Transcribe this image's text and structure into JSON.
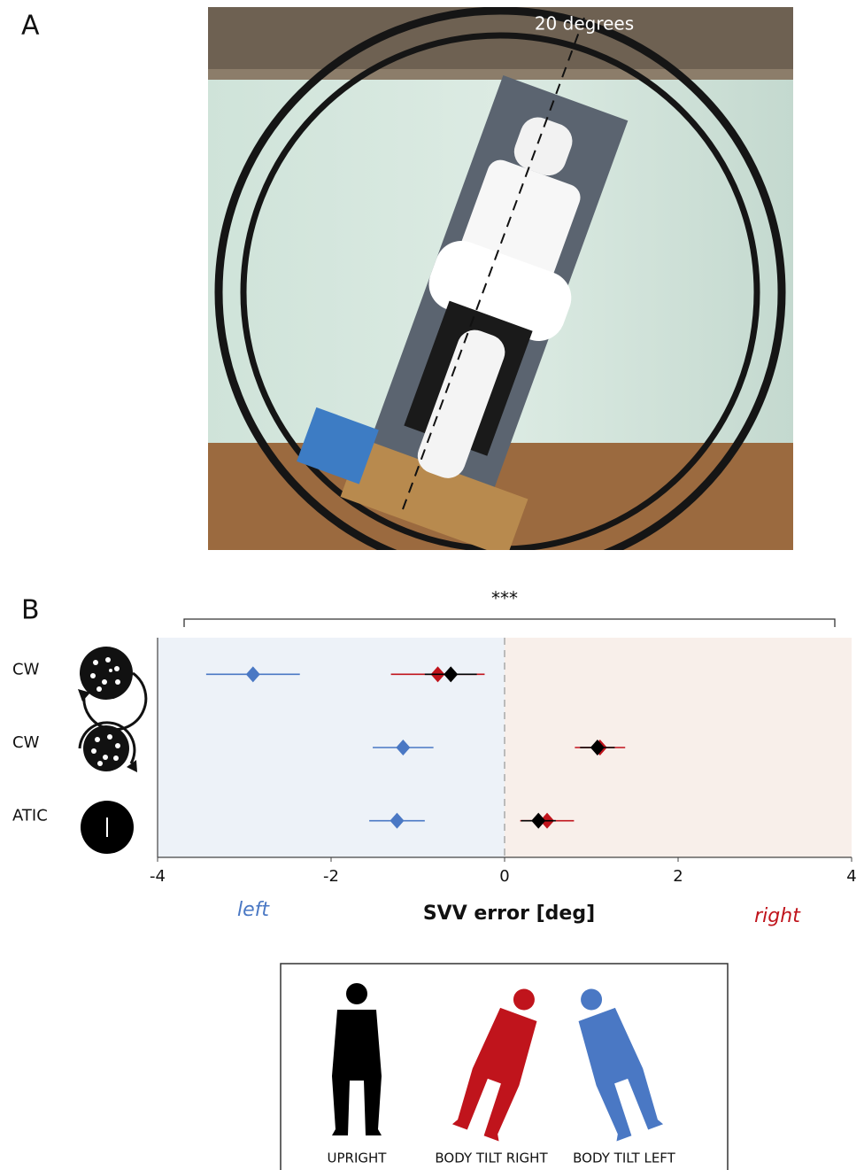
{
  "figure": {
    "panel_a_label": "A",
    "panel_b_label": "B",
    "photo_annotation": "20 degrees"
  },
  "chart_data": {
    "type": "errorbar",
    "categories": [
      "CW",
      "CW",
      "ATIC"
    ],
    "series": [
      {
        "name": "UPRIGHT",
        "color": "#000000",
        "values": [
          -0.62,
          1.07,
          0.39
        ],
        "errors": [
          0.3,
          0.2,
          0.2
        ]
      },
      {
        "name": "BODY TILT RIGHT",
        "color": "#c0141c",
        "values": [
          -0.77,
          1.1,
          0.49
        ],
        "errors": [
          0.54,
          0.29,
          0.31
        ]
      },
      {
        "name": "BODY TILT LEFT",
        "color": "#4a78c4",
        "values": [
          -2.9,
          -1.17,
          -1.24
        ],
        "errors": [
          0.54,
          0.35,
          0.32
        ]
      }
    ],
    "xlim": [
      -4,
      4
    ],
    "xticks": [
      -4,
      -2,
      0,
      2,
      4
    ],
    "xlabel": "SVV error [deg]",
    "direction_labels": [
      "left",
      "right"
    ],
    "significance": "***"
  }
}
